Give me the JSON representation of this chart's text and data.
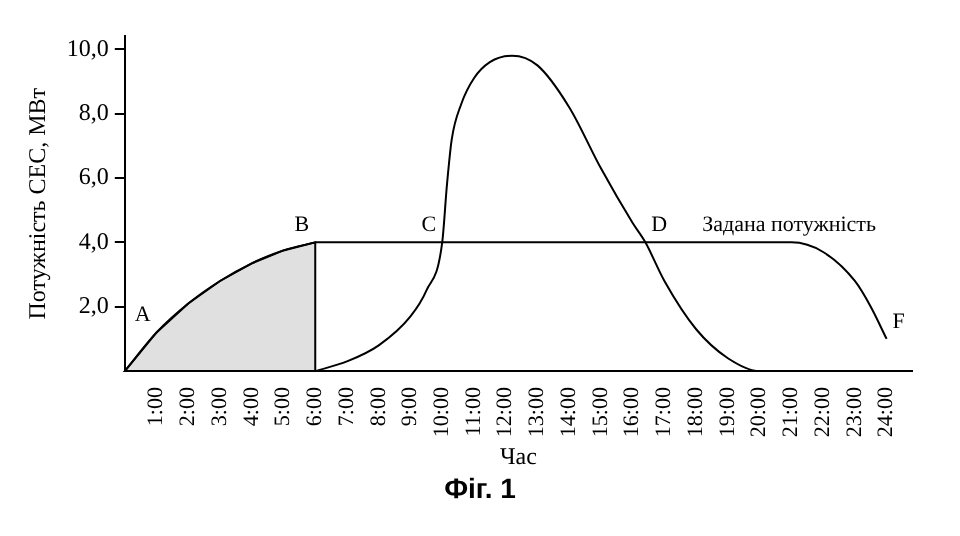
{
  "chart_data": {
    "type": "line",
    "xlabel": "Час",
    "ylabel": "Потужність СЕС, МВт",
    "xlim": [
      0,
      24.8
    ],
    "ylim": [
      0,
      10.4
    ],
    "xticks": [
      {
        "value": 1,
        "label": "1:00"
      },
      {
        "value": 2,
        "label": "2:00"
      },
      {
        "value": 3,
        "label": "3:00"
      },
      {
        "value": 4,
        "label": "4:00"
      },
      {
        "value": 5,
        "label": "5:00"
      },
      {
        "value": 6,
        "label": "6:00"
      },
      {
        "value": 7,
        "label": "7:00"
      },
      {
        "value": 8,
        "label": "8:00"
      },
      {
        "value": 9,
        "label": "9:00"
      },
      {
        "value": 10,
        "label": "10:00"
      },
      {
        "value": 11,
        "label": "11:00"
      },
      {
        "value": 12,
        "label": "12:00"
      },
      {
        "value": 13,
        "label": "13:00"
      },
      {
        "value": 14,
        "label": "14:00"
      },
      {
        "value": 15,
        "label": "15:00"
      },
      {
        "value": 16,
        "label": "16:00"
      },
      {
        "value": 17,
        "label": "17:00"
      },
      {
        "value": 18,
        "label": "18:00"
      },
      {
        "value": 19,
        "label": "19:00"
      },
      {
        "value": 20,
        "label": "20:00"
      },
      {
        "value": 21,
        "label": "21:00"
      },
      {
        "value": 22,
        "label": "22:00"
      },
      {
        "value": 23,
        "label": "23:00"
      },
      {
        "value": 24,
        "label": "24:00"
      }
    ],
    "yticks": [
      {
        "value": 2,
        "label": "2,0"
      },
      {
        "value": 4,
        "label": "4,0"
      },
      {
        "value": 6,
        "label": "6,0"
      },
      {
        "value": 8,
        "label": "8,0"
      },
      {
        "value": 10,
        "label": "10,0"
      }
    ],
    "series": [
      {
        "type": "area",
        "color": "#000000",
        "x": [
          0,
          1,
          2,
          3,
          4,
          5,
          6
        ],
        "values": [
          0,
          1.2,
          2.1,
          2.8,
          3.35,
          3.75,
          4
        ]
      },
      {
        "color": "#000000",
        "x": [
          6,
          10,
          16.4,
          18,
          20,
          21,
          22,
          23,
          23.5,
          24
        ],
        "values": [
          4,
          4,
          4,
          4,
          4,
          4,
          3.7,
          2.8,
          2.0,
          1.0
        ]
      },
      {
        "color": "#000000",
        "x": [
          6,
          7,
          8,
          9,
          9.5,
          10,
          10.15,
          10.3,
          10.6,
          11,
          11.5,
          12.2,
          13,
          14,
          15,
          16,
          16.4,
          17,
          18,
          19,
          20,
          21
        ],
        "values": [
          0,
          0.3,
          0.8,
          1.7,
          2.5,
          4,
          5.8,
          7.2,
          8.3,
          9.1,
          9.6,
          9.8,
          9.5,
          8.2,
          6.3,
          4.6,
          4,
          2.8,
          1.3,
          0.4,
          0,
          0
        ]
      }
    ],
    "annotations": [
      {
        "text": "A",
        "x": 1,
        "y": 1.2
      },
      {
        "text": "B",
        "x": 6,
        "y": 4
      },
      {
        "text": "C",
        "x": 10,
        "y": 4
      },
      {
        "text": "D",
        "x": 16.4,
        "y": 4
      },
      {
        "text": "Задана потужність",
        "x": 18,
        "y": 4
      },
      {
        "text": "F",
        "x": 24,
        "y": 1.0
      },
      "Фіг. 1"
    ],
    "grid": false,
    "legend": false,
    "marker": "none",
    "line_style": "solid"
  }
}
